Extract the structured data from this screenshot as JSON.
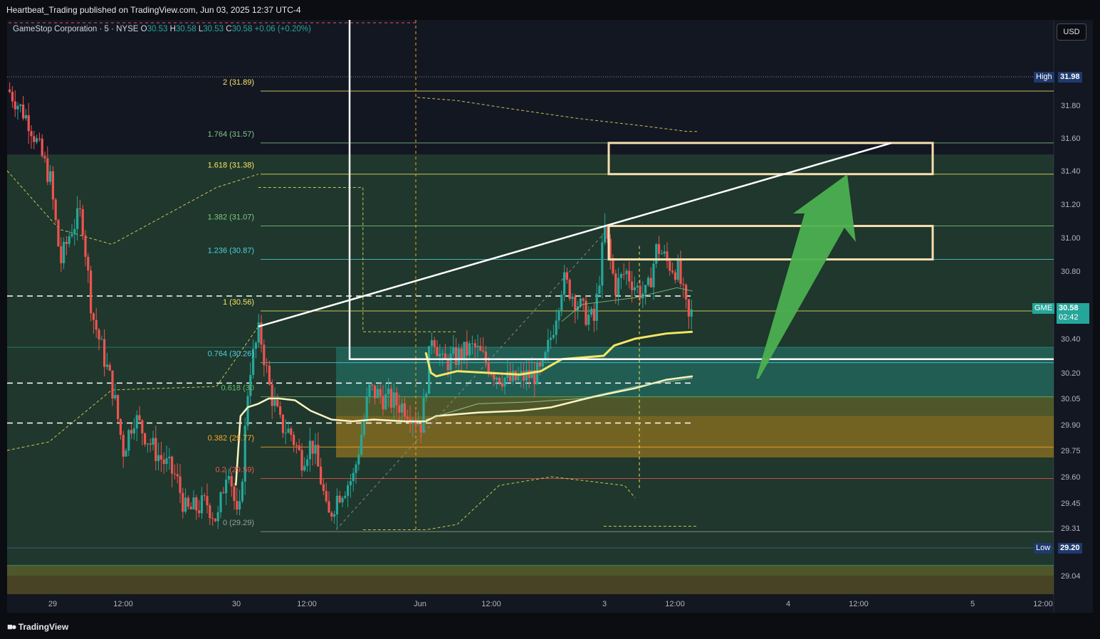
{
  "header": {
    "published": "Heartbeat_Trading published on TradingView.com, Jun 03, 2025 12:37 UTC-4"
  },
  "legend": {
    "symbol": "GameStop Corporation · 5 · NYSE",
    "o_label": "O",
    "o_value": "30.53",
    "h_label": "H",
    "h_value": "30.58",
    "l_label": "L",
    "l_value": "30.53",
    "c_label": "C",
    "c_value": "30.58",
    "change": "+0.06 (+0.20%)"
  },
  "currency": "USD",
  "footer": {
    "logo_text": "TradingView"
  },
  "colors": {
    "background": "#131722",
    "bull": "#26a69a",
    "bear": "#ef5350",
    "fib_yellow": "#f5e663",
    "box_outline": "#f8deb1",
    "arrow": "#4caf50"
  },
  "chart_data": {
    "type": "candlestick",
    "symbol": "GME",
    "interval": "5",
    "ylim": [
      28.9,
      32.3
    ],
    "x_ticks": [
      "29",
      "12:00",
      "30",
      "12:00",
      "Jun",
      "12:00",
      "3",
      "12:00",
      "4",
      "12:00",
      "5",
      "12:00"
    ],
    "y_ticks": [
      "31.80",
      "31.60",
      "31.40",
      "31.20",
      "31.00",
      "30.80",
      "30.40",
      "30.20",
      "30.05",
      "29.90",
      "29.75",
      "29.60",
      "29.45",
      "29.31",
      "29.04"
    ],
    "high_label": "High",
    "high_value": "31.98",
    "low_label": "Low",
    "low_value": "29.20",
    "last_label": "GME",
    "last_price": "30.58",
    "countdown": "02:42",
    "fib_levels": [
      {
        "label": "2 (31.89)",
        "ratio": 2,
        "value": 31.89
      },
      {
        "label": "1.764 (31.57)",
        "ratio": 1.764,
        "value": 31.57
      },
      {
        "label": "1.618 (31.38)",
        "ratio": 1.618,
        "value": 31.38
      },
      {
        "label": "1.382 (31.07)",
        "ratio": 1.382,
        "value": 31.07
      },
      {
        "label": "1.236 (30.87)",
        "ratio": 1.236,
        "value": 30.87
      },
      {
        "label": "1 (30.56)",
        "ratio": 1,
        "value": 30.56
      },
      {
        "label": "0.764 (30.26)",
        "ratio": 0.764,
        "value": 30.26
      },
      {
        "label": "0.618 (30",
        "ratio": 0.618,
        "value": 30.06
      },
      {
        "label": "0.382 (29.77)",
        "ratio": 0.382,
        "value": 29.77
      },
      {
        "label": "0.2  (29.59)",
        "ratio": 0.236,
        "value": 29.59
      },
      {
        "label": "0 (29.29)",
        "ratio": 0,
        "value": 29.29
      }
    ],
    "target_boxes": [
      {
        "low": 31.38,
        "high": 31.57
      },
      {
        "low": 30.87,
        "high": 31.07
      }
    ],
    "trendline": [
      {
        "t": 0.24,
        "price": 30.47
      },
      {
        "t": 0.845,
        "price": 31.57
      }
    ]
  }
}
